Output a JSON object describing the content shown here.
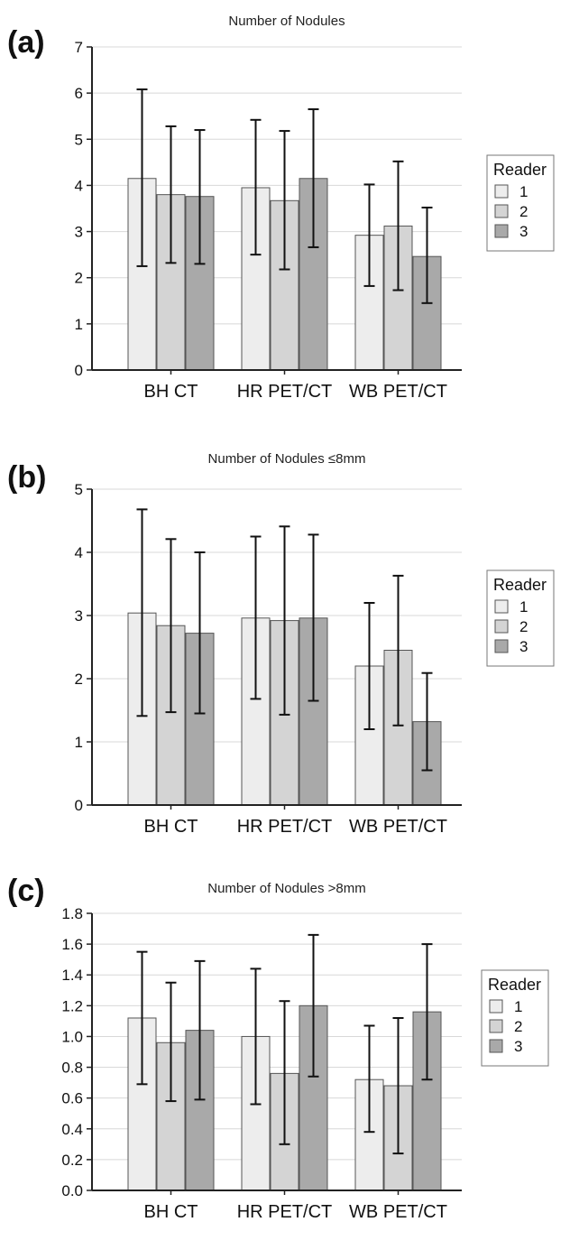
{
  "colors": {
    "reader1": "#ededed",
    "reader2": "#d4d4d4",
    "reader3": "#a9a9a9",
    "grid": "#d8d8d8",
    "axis": "#222222"
  },
  "legend": {
    "title": "Reader",
    "items": [
      "1",
      "2",
      "3"
    ]
  },
  "chart_data": [
    {
      "panel_label": "(a)",
      "type": "bar",
      "title": "Number of Nodules",
      "categories": [
        "BH CT",
        "HR PET/CT",
        "WB PET/CT"
      ],
      "series": [
        {
          "name": "1",
          "values": [
            4.15,
            3.95,
            2.92
          ],
          "err_low": [
            2.25,
            2.5,
            1.82
          ],
          "err_high": [
            6.08,
            5.42,
            4.02
          ]
        },
        {
          "name": "2",
          "values": [
            3.8,
            3.67,
            3.12
          ],
          "err_low": [
            2.32,
            2.18,
            1.73
          ],
          "err_high": [
            5.28,
            5.18,
            4.52
          ]
        },
        {
          "name": "3",
          "values": [
            3.76,
            4.15,
            2.46
          ],
          "err_low": [
            2.3,
            2.66,
            1.45
          ],
          "err_high": [
            5.2,
            5.65,
            3.52
          ]
        }
      ],
      "ylim": [
        0,
        7
      ],
      "yticks": [
        "0",
        "1",
        "2",
        "3",
        "4",
        "5",
        "6",
        "7"
      ],
      "grid": true,
      "legend_position": "right"
    },
    {
      "panel_label": "(b)",
      "type": "bar",
      "title": "Number of Nodules ≤8mm",
      "categories": [
        "BH CT",
        "HR PET/CT",
        "WB PET/CT"
      ],
      "series": [
        {
          "name": "1",
          "values": [
            3.04,
            2.96,
            2.2
          ],
          "err_low": [
            1.41,
            1.68,
            1.2
          ],
          "err_high": [
            4.68,
            4.25,
            3.2
          ]
        },
        {
          "name": "2",
          "values": [
            2.84,
            2.92,
            2.45
          ],
          "err_low": [
            1.47,
            1.43,
            1.26
          ],
          "err_high": [
            4.21,
            4.41,
            3.63
          ]
        },
        {
          "name": "3",
          "values": [
            2.72,
            2.96,
            1.32
          ],
          "err_low": [
            1.45,
            1.65,
            0.55
          ],
          "err_high": [
            4.0,
            4.28,
            2.09
          ]
        }
      ],
      "ylim": [
        0,
        5
      ],
      "yticks": [
        "0",
        "1",
        "2",
        "3",
        "4",
        "5"
      ],
      "grid": true,
      "legend_position": "right"
    },
    {
      "panel_label": "(c)",
      "type": "bar",
      "title": "Number of Nodules >8mm",
      "categories": [
        "BH CT",
        "HR PET/CT",
        "WB PET/CT"
      ],
      "series": [
        {
          "name": "1",
          "values": [
            1.12,
            1.0,
            0.72
          ],
          "err_low": [
            0.69,
            0.56,
            0.38
          ],
          "err_high": [
            1.55,
            1.44,
            1.07
          ]
        },
        {
          "name": "2",
          "values": [
            0.96,
            0.76,
            0.68
          ],
          "err_low": [
            0.58,
            0.3,
            0.24
          ],
          "err_high": [
            1.35,
            1.23,
            1.12
          ]
        },
        {
          "name": "3",
          "values": [
            1.04,
            1.2,
            1.16
          ],
          "err_low": [
            0.59,
            0.74,
            0.72
          ],
          "err_high": [
            1.49,
            1.66,
            1.6
          ]
        }
      ],
      "ylim": [
        0,
        1.8
      ],
      "yticks": [
        "0.0",
        "0.2",
        "0.4",
        "0.6",
        "0.8",
        "1.0",
        "1.2",
        "1.4",
        "1.6",
        "1.8"
      ],
      "grid": true,
      "legend_position": "right"
    }
  ]
}
